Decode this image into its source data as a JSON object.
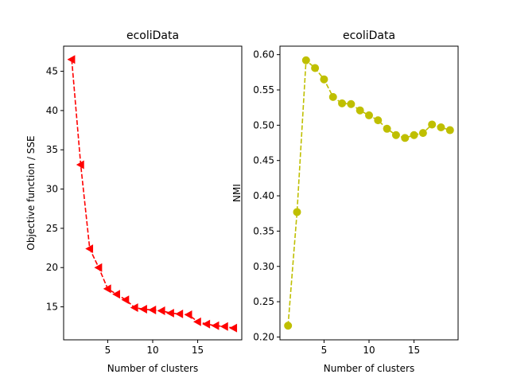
{
  "chart_data": [
    {
      "type": "line",
      "title": "ecoliData",
      "xlabel": "Number of clusters",
      "ylabel": "Objective function / SSE",
      "color": "#ff0000",
      "marker": "triangle-left",
      "line_style": "dashed",
      "xlim": [
        0.1,
        19.9
      ],
      "ylim": [
        10.8,
        48.2
      ],
      "xticks": [
        5,
        10,
        15
      ],
      "yticks": [
        15,
        20,
        25,
        30,
        35,
        40,
        45
      ],
      "tick_labels_x": [
        "5",
        "10",
        "15"
      ],
      "tick_labels_y": [
        "15",
        "20",
        "25",
        "30",
        "35",
        "40",
        "45"
      ],
      "x": [
        1,
        2,
        3,
        4,
        5,
        6,
        7,
        8,
        9,
        10,
        11,
        12,
        13,
        14,
        15,
        16,
        17,
        18,
        19
      ],
      "y": [
        46.5,
        33.1,
        22.4,
        20.0,
        17.3,
        16.6,
        15.9,
        14.9,
        14.7,
        14.6,
        14.5,
        14.2,
        14.1,
        14.0,
        13.1,
        12.8,
        12.6,
        12.5,
        12.3
      ]
    },
    {
      "type": "line",
      "title": "ecoliData",
      "xlabel": "Number of clusters",
      "ylabel": "NMI",
      "color": "#bfbf00",
      "marker": "circle",
      "line_style": "dashed",
      "xlim": [
        0.1,
        19.9
      ],
      "ylim": [
        0.196,
        0.612
      ],
      "xticks": [
        5,
        10,
        15
      ],
      "yticks": [
        0.2,
        0.25,
        0.3,
        0.35,
        0.4,
        0.45,
        0.5,
        0.55,
        0.6
      ],
      "tick_labels_x": [
        "5",
        "10",
        "15"
      ],
      "tick_labels_y": [
        "0.20",
        "0.25",
        "0.30",
        "0.35",
        "0.40",
        "0.45",
        "0.50",
        "0.55",
        "0.60"
      ],
      "x": [
        1,
        2,
        3,
        4,
        5,
        6,
        7,
        8,
        9,
        10,
        11,
        12,
        13,
        14,
        15,
        16,
        17,
        18,
        19
      ],
      "y": [
        0.216,
        0.377,
        0.592,
        0.581,
        0.565,
        0.54,
        0.531,
        0.53,
        0.521,
        0.514,
        0.507,
        0.495,
        0.486,
        0.482,
        0.486,
        0.489,
        0.501,
        0.497,
        0.493
      ]
    }
  ]
}
